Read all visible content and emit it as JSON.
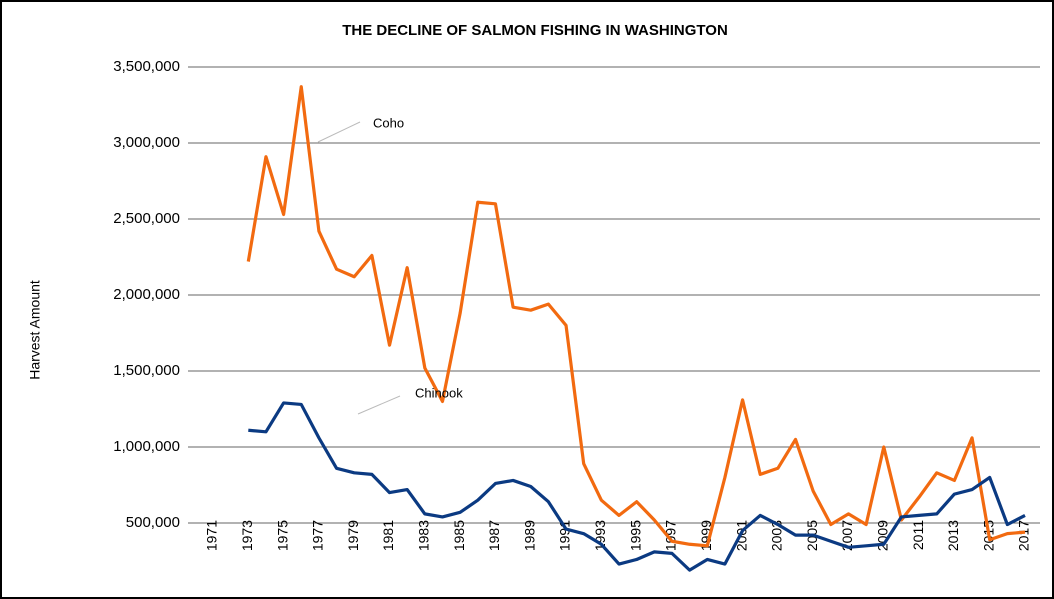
{
  "chart_data": {
    "type": "line",
    "title": "THE DECLINE OF SALMON FISHING IN WASHINGTON",
    "y_label": "Harvest Amount",
    "x": [
      1971,
      1972,
      1973,
      1974,
      1975,
      1976,
      1977,
      1978,
      1979,
      1980,
      1981,
      1982,
      1983,
      1984,
      1985,
      1986,
      1987,
      1988,
      1989,
      1990,
      1991,
      1992,
      1993,
      1994,
      1995,
      1996,
      1997,
      1998,
      1999,
      2000,
      2001,
      2002,
      2003,
      2004,
      2005,
      2006,
      2007,
      2008,
      2009,
      2010,
      2011,
      2012,
      2013,
      2014,
      2015,
      2016,
      2017
    ],
    "xlim": [
      1971,
      2017
    ],
    "xticks": [
      1971,
      1973,
      1975,
      1977,
      1979,
      1981,
      1983,
      1985,
      1987,
      1989,
      1991,
      1993,
      1995,
      1997,
      1999,
      2001,
      2003,
      2005,
      2007,
      2009,
      2011,
      2013,
      2015,
      2017
    ],
    "ylim": [
      0,
      3500000
    ],
    "yticks": [
      {
        "value": 500000,
        "label": "500,000"
      },
      {
        "value": 1000000,
        "label": "1,000,000"
      },
      {
        "value": 1500000,
        "label": "1,500,000"
      },
      {
        "value": 2000000,
        "label": "2,000,000"
      },
      {
        "value": 2500000,
        "label": "2,500,000"
      },
      {
        "value": 3000000,
        "label": "3,000,000"
      },
      {
        "value": 3500000,
        "label": "3,500,000"
      }
    ],
    "grid": true,
    "series": [
      {
        "name": "Coho",
        "color": "#f26a10",
        "values": [
          null,
          null,
          2220000,
          2910000,
          2530000,
          3370000,
          2420000,
          2170000,
          2120000,
          2260000,
          1670000,
          2180000,
          1520000,
          1300000,
          1880000,
          2610000,
          2600000,
          1920000,
          1900000,
          1940000,
          1800000,
          890000,
          650000,
          550000,
          640000,
          520000,
          380000,
          360000,
          350000,
          800000,
          1310000,
          820000,
          860000,
          1050000,
          710000,
          490000,
          560000,
          490000,
          1000000,
          520000,
          670000,
          830000,
          780000,
          1060000,
          390000,
          430000,
          440000
        ]
      },
      {
        "name": "Chinook",
        "color": "#0b3a82",
        "values": [
          null,
          null,
          1110000,
          1100000,
          1290000,
          1280000,
          1060000,
          860000,
          830000,
          820000,
          700000,
          720000,
          560000,
          540000,
          570000,
          650000,
          760000,
          780000,
          740000,
          640000,
          460000,
          430000,
          360000,
          230000,
          260000,
          310000,
          300000,
          190000,
          260000,
          230000,
          450000,
          550000,
          490000,
          420000,
          420000,
          380000,
          340000,
          350000,
          360000,
          540000,
          550000,
          560000,
          690000,
          720000,
          800000,
          490000,
          550000
        ]
      }
    ]
  }
}
